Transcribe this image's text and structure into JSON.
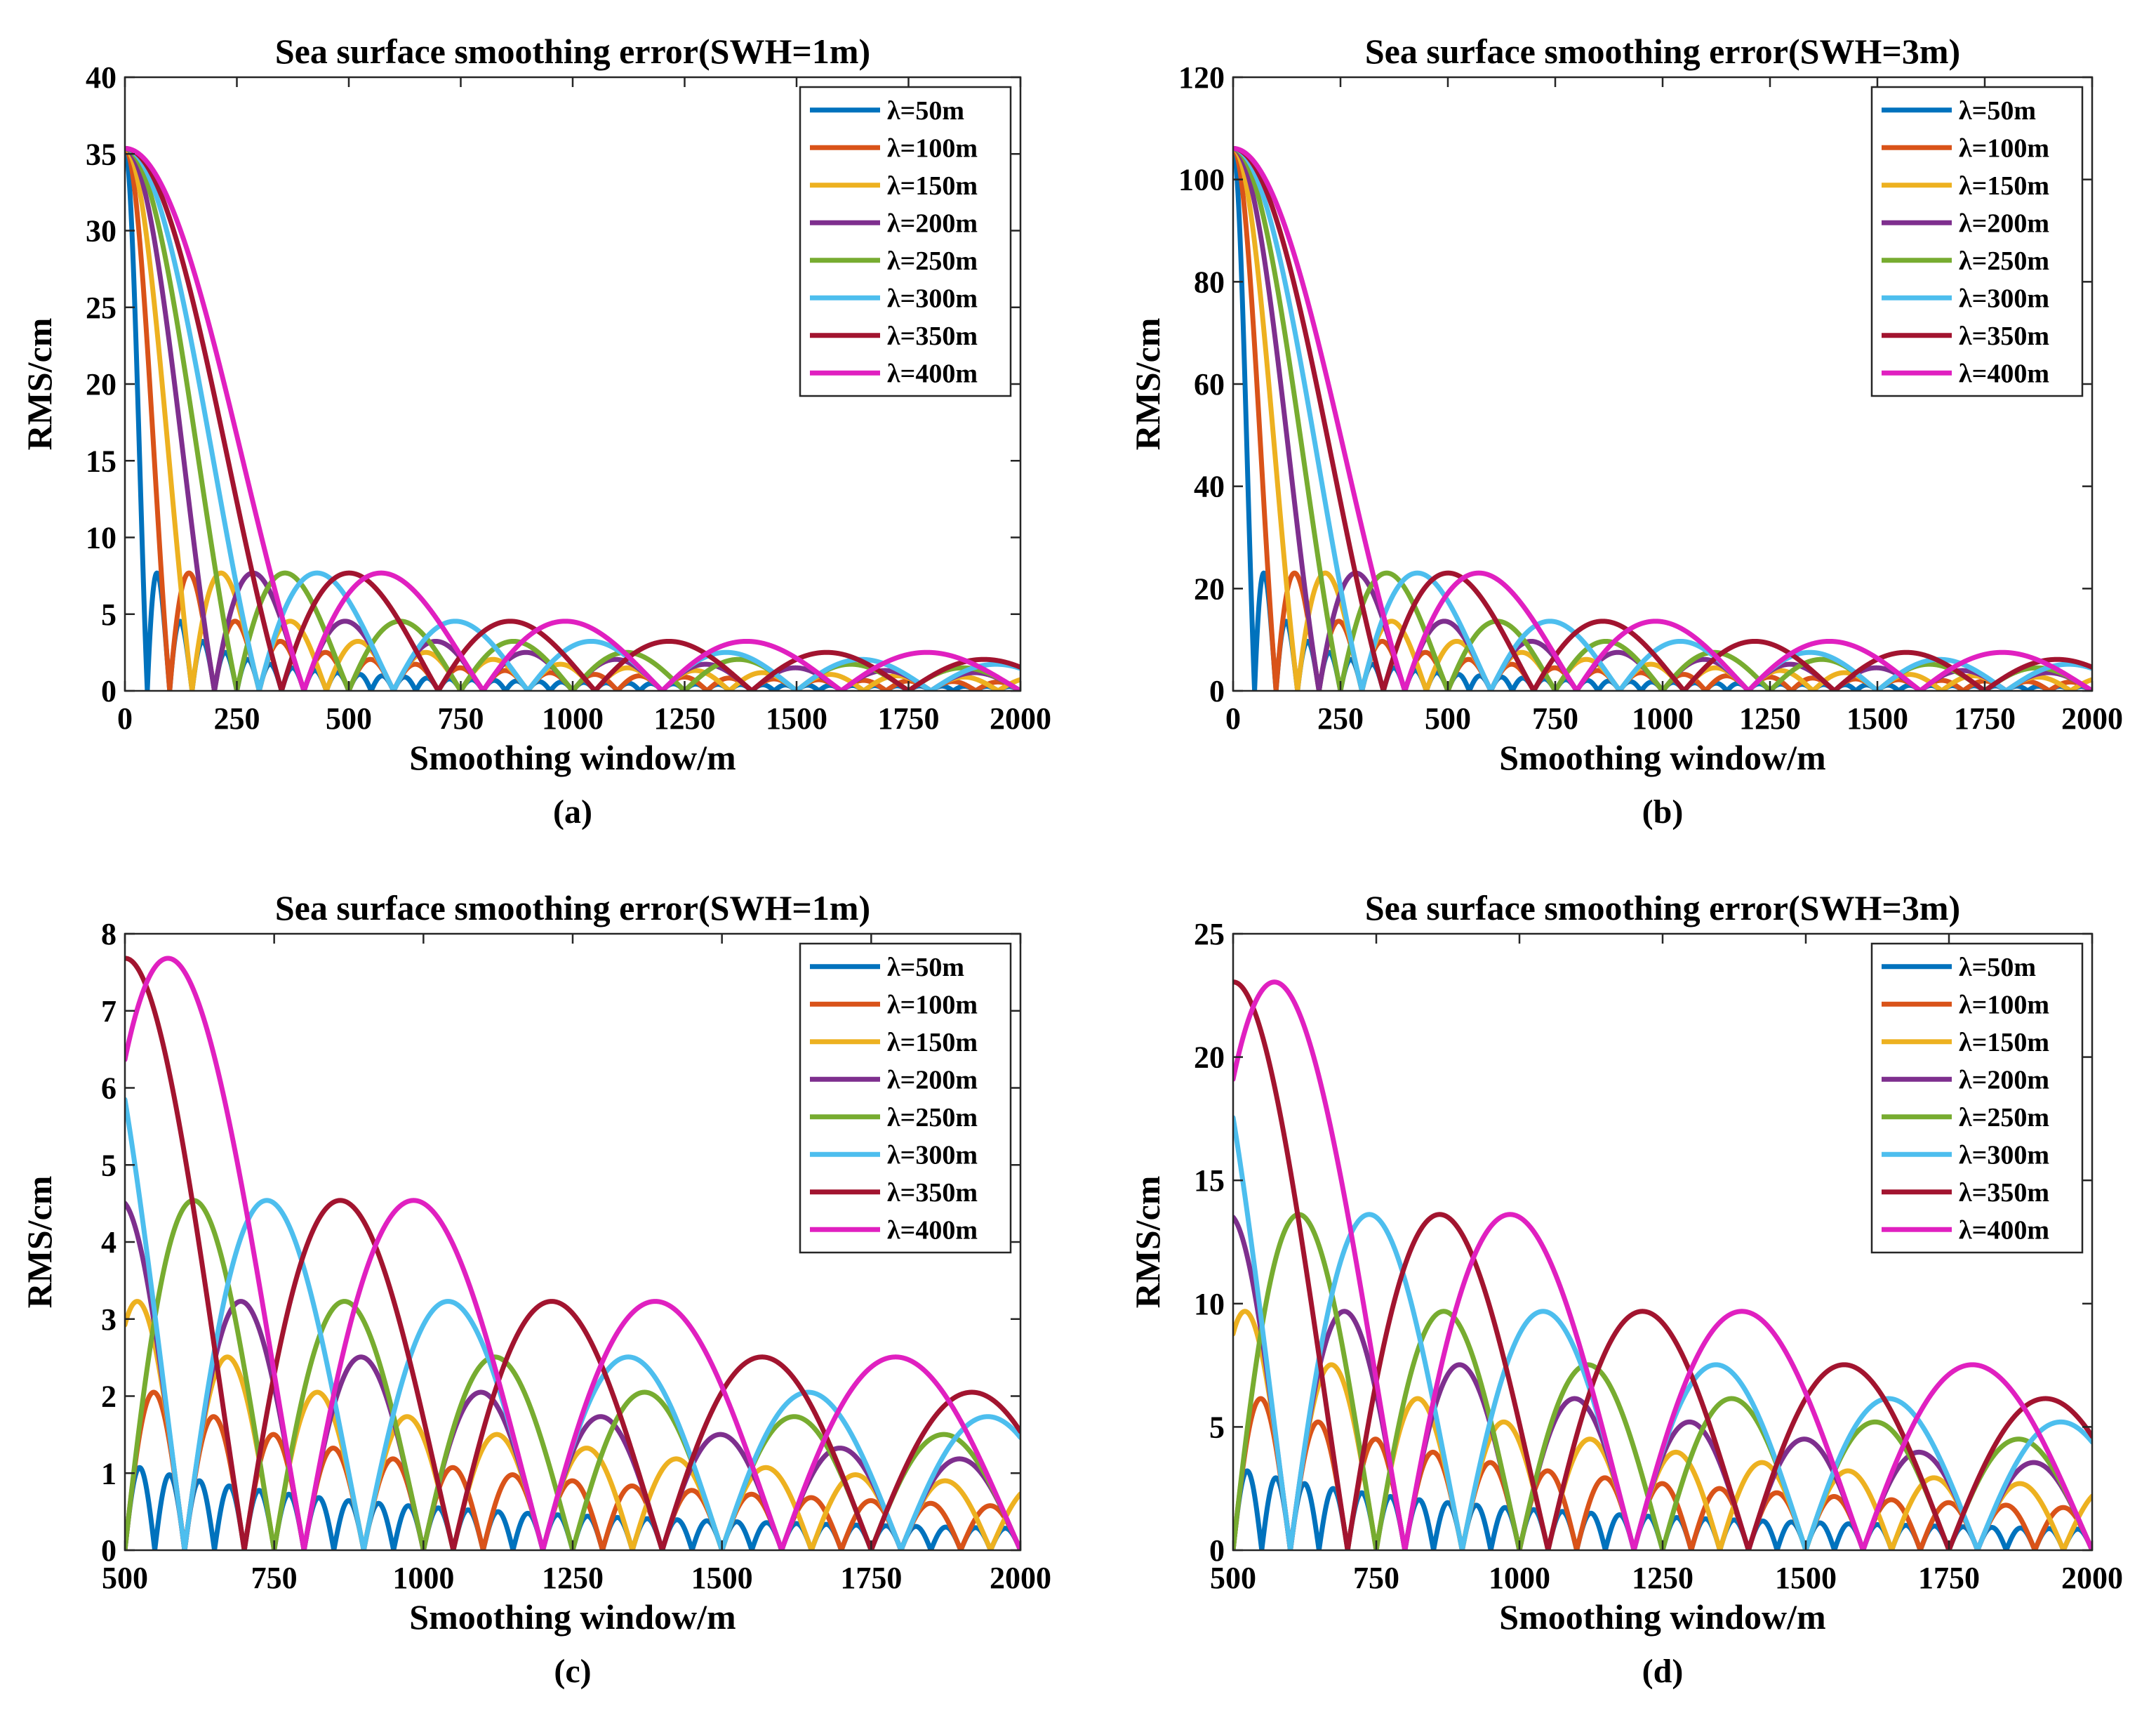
{
  "figure": {
    "panels": [
      {
        "id": "a",
        "caption": "(a)"
      },
      {
        "id": "b",
        "caption": "(b)"
      },
      {
        "id": "c",
        "caption": "(c)"
      },
      {
        "id": "d",
        "caption": "(d)"
      }
    ]
  },
  "chart_data": [
    {
      "type": "line",
      "panel": "(a)",
      "title": "Sea surface smoothing error(SWH=1m)",
      "xlabel": "Smoothing window/m",
      "ylabel": "RMS/cm",
      "xlim": [
        0,
        2000
      ],
      "ylim": [
        0,
        40
      ],
      "xticks": [
        0,
        250,
        500,
        750,
        1000,
        1250,
        1500,
        1750,
        2000
      ],
      "yticks": [
        0,
        5,
        10,
        15,
        20,
        25,
        30,
        35,
        40
      ],
      "amplitude_cm": 35.36,
      "model": "RMS = amplitude * |sinc(window / wavelength)|",
      "grid": false,
      "legend": "top-right",
      "series": [
        {
          "name": "λ=50m",
          "wavelength_m": 50,
          "color": "#0072BD"
        },
        {
          "name": "λ=100m",
          "wavelength_m": 100,
          "color": "#D95319"
        },
        {
          "name": "λ=150m",
          "wavelength_m": 150,
          "color": "#EDB120"
        },
        {
          "name": "λ=200m",
          "wavelength_m": 200,
          "color": "#7E2F8E"
        },
        {
          "name": "λ=250m",
          "wavelength_m": 250,
          "color": "#77AC30"
        },
        {
          "name": "λ=300m",
          "wavelength_m": 300,
          "color": "#4DBEEE"
        },
        {
          "name": "λ=350m",
          "wavelength_m": 350,
          "color": "#A2142F"
        },
        {
          "name": "λ=400m",
          "wavelength_m": 400,
          "color": "#E020C0"
        }
      ]
    },
    {
      "type": "line",
      "panel": "(b)",
      "title": "Sea surface smoothing error(SWH=3m)",
      "xlabel": "Smoothing window/m",
      "ylabel": "RMS/cm",
      "xlim": [
        0,
        2000
      ],
      "ylim": [
        0,
        120
      ],
      "xticks": [
        0,
        250,
        500,
        750,
        1000,
        1250,
        1500,
        1750,
        2000
      ],
      "yticks": [
        0,
        20,
        40,
        60,
        80,
        100,
        120
      ],
      "amplitude_cm": 106.07,
      "model": "RMS = amplitude * |sinc(window / wavelength)|",
      "grid": false,
      "legend": "top-right",
      "series": [
        {
          "name": "λ=50m",
          "wavelength_m": 50,
          "color": "#0072BD"
        },
        {
          "name": "λ=100m",
          "wavelength_m": 100,
          "color": "#D95319"
        },
        {
          "name": "λ=150m",
          "wavelength_m": 150,
          "color": "#EDB120"
        },
        {
          "name": "λ=200m",
          "wavelength_m": 200,
          "color": "#7E2F8E"
        },
        {
          "name": "λ=250m",
          "wavelength_m": 250,
          "color": "#77AC30"
        },
        {
          "name": "λ=300m",
          "wavelength_m": 300,
          "color": "#4DBEEE"
        },
        {
          "name": "λ=350m",
          "wavelength_m": 350,
          "color": "#A2142F"
        },
        {
          "name": "λ=400m",
          "wavelength_m": 400,
          "color": "#E020C0"
        }
      ]
    },
    {
      "type": "line",
      "panel": "(c)",
      "title": "Sea surface smoothing error(SWH=1m)",
      "xlabel": "Smoothing window/m",
      "ylabel": "RMS/cm",
      "xlim": [
        500,
        2000
      ],
      "ylim": [
        0,
        8
      ],
      "xticks": [
        500,
        750,
        1000,
        1250,
        1500,
        1750,
        2000
      ],
      "yticks": [
        0,
        1,
        2,
        3,
        4,
        5,
        6,
        7,
        8
      ],
      "amplitude_cm": 35.36,
      "model": "RMS = amplitude * |sinc(window / wavelength)|",
      "grid": false,
      "legend": "top-right",
      "series": [
        {
          "name": "λ=50m",
          "wavelength_m": 50,
          "color": "#0072BD"
        },
        {
          "name": "λ=100m",
          "wavelength_m": 100,
          "color": "#D95319"
        },
        {
          "name": "λ=150m",
          "wavelength_m": 150,
          "color": "#EDB120"
        },
        {
          "name": "λ=200m",
          "wavelength_m": 200,
          "color": "#7E2F8E"
        },
        {
          "name": "λ=250m",
          "wavelength_m": 250,
          "color": "#77AC30"
        },
        {
          "name": "λ=300m",
          "wavelength_m": 300,
          "color": "#4DBEEE"
        },
        {
          "name": "λ=350m",
          "wavelength_m": 350,
          "color": "#A2142F"
        },
        {
          "name": "λ=400m",
          "wavelength_m": 400,
          "color": "#E020C0"
        }
      ]
    },
    {
      "type": "line",
      "panel": "(d)",
      "title": "Sea surface smoothing error(SWH=3m)",
      "xlabel": "Smoothing window/m",
      "ylabel": "RMS/cm",
      "xlim": [
        500,
        2000
      ],
      "ylim": [
        0,
        25
      ],
      "xticks": [
        500,
        750,
        1000,
        1250,
        1500,
        1750,
        2000
      ],
      "yticks": [
        0,
        5,
        10,
        15,
        20,
        25
      ],
      "amplitude_cm": 106.07,
      "model": "RMS = amplitude * |sinc(window / wavelength)|",
      "grid": false,
      "legend": "top-right",
      "series": [
        {
          "name": "λ=50m",
          "wavelength_m": 50,
          "color": "#0072BD"
        },
        {
          "name": "λ=100m",
          "wavelength_m": 100,
          "color": "#D95319"
        },
        {
          "name": "λ=150m",
          "wavelength_m": 150,
          "color": "#EDB120"
        },
        {
          "name": "λ=200m",
          "wavelength_m": 200,
          "color": "#7E2F8E"
        },
        {
          "name": "λ=250m",
          "wavelength_m": 250,
          "color": "#77AC30"
        },
        {
          "name": "λ=300m",
          "wavelength_m": 300,
          "color": "#4DBEEE"
        },
        {
          "name": "λ=350m",
          "wavelength_m": 350,
          "color": "#A2142F"
        },
        {
          "name": "λ=400m",
          "wavelength_m": 400,
          "color": "#E020C0"
        }
      ]
    }
  ]
}
